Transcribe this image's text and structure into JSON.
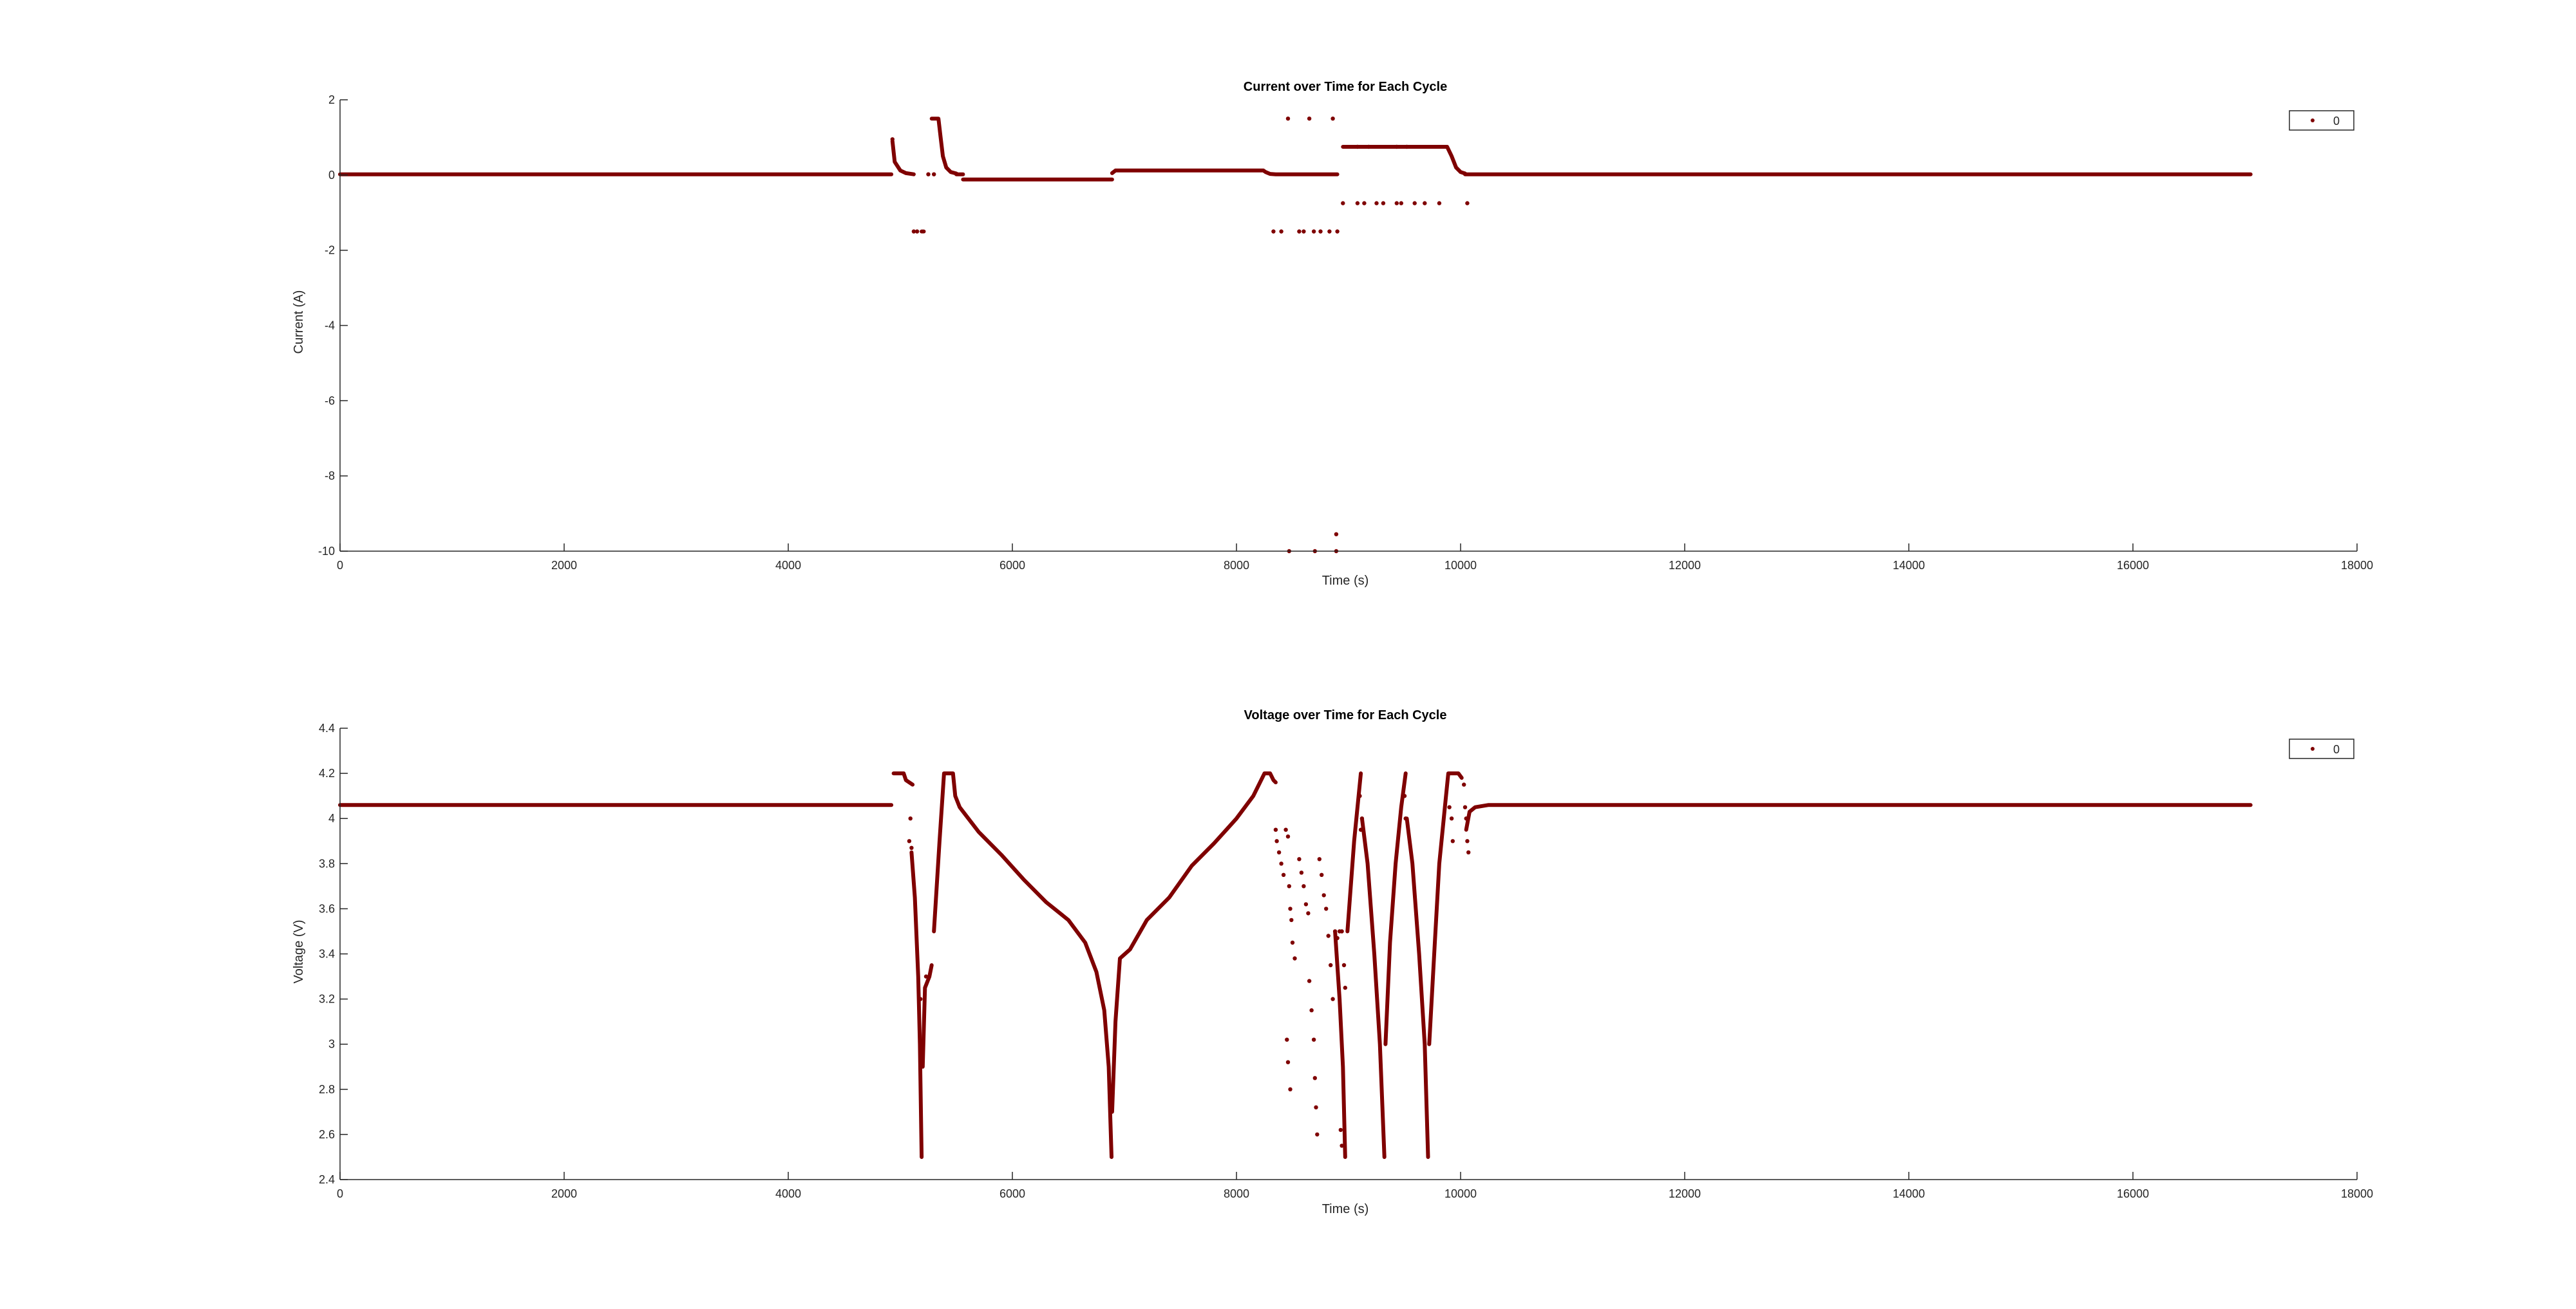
{
  "chart_data": [
    {
      "type": "scatter",
      "title": "Current over Time for Each Cycle",
      "xlabel": "Time (s)",
      "ylabel": "Current (A)",
      "xlim": [
        0,
        18000
      ],
      "ylim": [
        -10,
        2
      ],
      "xticks": [
        0,
        2000,
        4000,
        6000,
        8000,
        10000,
        12000,
        14000,
        16000,
        18000
      ],
      "yticks": [
        -10,
        -8,
        -6,
        -4,
        -2,
        0,
        2
      ],
      "grid": false,
      "legend": {
        "position": "top-right",
        "entries": [
          "0"
        ]
      },
      "series": [
        {
          "name": "0",
          "color": "#7f0000",
          "segments": [
            [
              [
                0,
                0.02
              ],
              [
                4920,
                0.02
              ]
            ],
            [
              [
                4930,
                0.9
              ],
              [
                4950,
                0.35
              ],
              [
                5000,
                0.12
              ],
              [
                5050,
                0.05
              ],
              [
                5120,
                0.02
              ]
            ],
            [
              [
                5190,
                -1.5
              ],
              [
                5210,
                -1.5
              ]
            ],
            [
              [
                5280,
                1.5
              ],
              [
                5340,
                1.5
              ],
              [
                5360,
                1.0
              ],
              [
                5380,
                0.5
              ],
              [
                5410,
                0.2
              ],
              [
                5450,
                0.08
              ],
              [
                5500,
                0.04
              ]
            ],
            [
              [
                5500,
                0.02
              ],
              [
                5560,
                0.02
              ]
            ],
            [
              [
                5560,
                -0.12
              ],
              [
                6890,
                -0.12
              ]
            ],
            [
              [
                6890,
                0.05
              ],
              [
                6920,
                0.12
              ],
              [
                8240,
                0.12
              ],
              [
                8260,
                0.08
              ],
              [
                8300,
                0.03
              ],
              [
                8350,
                0.02
              ],
              [
                8900,
                0.02
              ]
            ],
            [
              [
                8950,
                0.75
              ],
              [
                9880,
                0.75
              ],
              [
                9920,
                0.5
              ],
              [
                9960,
                0.2
              ],
              [
                10000,
                0.08
              ],
              [
                10040,
                0.04
              ]
            ],
            [
              [
                10040,
                0.02
              ],
              [
                17050,
                0.02
              ]
            ]
          ],
          "points": [
            [
              4930,
              0.95
            ],
            [
              5120,
              -1.5
            ],
            [
              5150,
              -1.5
            ],
            [
              5250,
              0.02
            ],
            [
              5300,
              0.02
            ],
            [
              8330,
              -1.5
            ],
            [
              8400,
              -1.5
            ],
            [
              8460,
              1.5
            ],
            [
              8650,
              1.5
            ],
            [
              8860,
              1.5
            ],
            [
              8560,
              -1.5
            ],
            [
              8600,
              -1.5
            ],
            [
              8690,
              -1.5
            ],
            [
              8750,
              -1.5
            ],
            [
              8830,
              -1.5
            ],
            [
              8900,
              -1.5
            ],
            [
              8470,
              -10
            ],
            [
              8700,
              -10
            ],
            [
              8890,
              -10
            ],
            [
              8890,
              -9.55
            ],
            [
              8950,
              -0.75
            ],
            [
              9080,
              -0.75
            ],
            [
              9140,
              -0.75
            ],
            [
              9250,
              -0.75
            ],
            [
              9310,
              -0.75
            ],
            [
              9430,
              -0.75
            ],
            [
              9470,
              -0.75
            ],
            [
              9590,
              -0.75
            ],
            [
              9680,
              -0.75
            ],
            [
              9810,
              -0.75
            ],
            [
              10060,
              -0.75
            ],
            [
              9080,
              0.75
            ],
            [
              9180,
              0.75
            ],
            [
              9430,
              0.75
            ],
            [
              9520,
              0.75
            ]
          ]
        }
      ]
    },
    {
      "type": "scatter",
      "title": "Voltage over Time for Each Cycle",
      "xlabel": "Time (s)",
      "ylabel": "Voltage (V)",
      "xlim": [
        0,
        18000
      ],
      "ylim": [
        2.4,
        4.4
      ],
      "xticks": [
        0,
        2000,
        4000,
        6000,
        8000,
        10000,
        12000,
        14000,
        16000,
        18000
      ],
      "yticks": [
        2.4,
        2.6,
        2.8,
        3,
        3.2,
        3.4,
        3.6,
        3.8,
        4,
        4.2,
        4.4
      ],
      "grid": false,
      "legend": {
        "position": "top-right",
        "entries": [
          "0"
        ]
      },
      "series": [
        {
          "name": "0",
          "color": "#7f0000",
          "segments": [
            [
              [
                0,
                4.06
              ],
              [
                4920,
                4.06
              ]
            ],
            [
              [
                4940,
                4.2
              ],
              [
                5030,
                4.2
              ],
              [
                5050,
                4.17
              ],
              [
                5080,
                4.16
              ],
              [
                5110,
                4.15
              ]
            ],
            [
              [
                5100,
                3.85
              ],
              [
                5130,
                3.65
              ],
              [
                5160,
                3.3
              ],
              [
                5175,
                3.0
              ],
              [
                5190,
                2.5
              ]
            ],
            [
              [
                5200,
                2.9
              ],
              [
                5220,
                3.25
              ],
              [
                5260,
                3.3
              ],
              [
                5280,
                3.35
              ]
            ],
            [
              [
                5300,
                3.5
              ],
              [
                5350,
                3.9
              ],
              [
                5390,
                4.2
              ],
              [
                5470,
                4.2
              ],
              [
                5490,
                4.1
              ],
              [
                5530,
                4.05
              ],
              [
                5700,
                3.94
              ],
              [
                5900,
                3.84
              ],
              [
                6100,
                3.73
              ],
              [
                6300,
                3.63
              ],
              [
                6500,
                3.55
              ],
              [
                6650,
                3.45
              ],
              [
                6750,
                3.32
              ],
              [
                6820,
                3.15
              ],
              [
                6860,
                2.9
              ],
              [
                6885,
                2.5
              ]
            ],
            [
              [
                6890,
                2.7
              ],
              [
                6920,
                3.1
              ],
              [
                6960,
                3.38
              ],
              [
                7050,
                3.42
              ],
              [
                7200,
                3.55
              ],
              [
                7400,
                3.65
              ],
              [
                7600,
                3.79
              ],
              [
                7800,
                3.89
              ],
              [
                8000,
                4.0
              ],
              [
                8150,
                4.1
              ],
              [
                8250,
                4.2
              ],
              [
                8300,
                4.2
              ],
              [
                8330,
                4.17
              ],
              [
                8350,
                4.16
              ]
            ],
            [
              [
                8880,
                3.5
              ],
              [
                8920,
                3.2
              ],
              [
                8950,
                2.9
              ],
              [
                8970,
                2.5
              ]
            ],
            [
              [
                8990,
                3.5
              ],
              [
                9050,
                3.9
              ],
              [
                9110,
                4.2
              ]
            ],
            [
              [
                9120,
                4.0
              ],
              [
                9170,
                3.8
              ],
              [
                9230,
                3.4
              ],
              [
                9280,
                3.0
              ],
              [
                9320,
                2.5
              ]
            ],
            [
              [
                9330,
                3.0
              ],
              [
                9370,
                3.45
              ],
              [
                9420,
                3.8
              ],
              [
                9470,
                4.05
              ],
              [
                9510,
                4.2
              ]
            ],
            [
              [
                9520,
                4.0
              ],
              [
                9570,
                3.8
              ],
              [
                9630,
                3.4
              ],
              [
                9680,
                3.0
              ],
              [
                9710,
                2.5
              ]
            ],
            [
              [
                9720,
                3.0
              ],
              [
                9770,
                3.45
              ],
              [
                9810,
                3.8
              ],
              [
                9860,
                4.05
              ],
              [
                9890,
                4.2
              ],
              [
                9980,
                4.2
              ],
              [
                10010,
                4.18
              ]
            ],
            [
              [
                10050,
                3.95
              ],
              [
                10080,
                4.03
              ],
              [
                10130,
                4.05
              ],
              [
                10250,
                4.06
              ],
              [
                17050,
                4.06
              ]
            ]
          ],
          "points": [
            [
              5080,
              3.9
            ],
            [
              5090,
              4.0
            ],
            [
              5100,
              3.87
            ],
            [
              5230,
              3.3
            ],
            [
              5180,
              3.2
            ],
            [
              8350,
              3.95
            ],
            [
              8360,
              3.9
            ],
            [
              8380,
              3.85
            ],
            [
              8400,
              3.8
            ],
            [
              8420,
              3.75
            ],
            [
              8440,
              3.95
            ],
            [
              8460,
              3.92
            ],
            [
              8470,
              3.7
            ],
            [
              8480,
              3.6
            ],
            [
              8490,
              3.55
            ],
            [
              8500,
              3.45
            ],
            [
              8520,
              3.38
            ],
            [
              8450,
              3.02
            ],
            [
              8460,
              2.92
            ],
            [
              8480,
              2.8
            ],
            [
              8560,
              3.82
            ],
            [
              8580,
              3.76
            ],
            [
              8600,
              3.7
            ],
            [
              8620,
              3.62
            ],
            [
              8640,
              3.58
            ],
            [
              8650,
              3.28
            ],
            [
              8670,
              3.15
            ],
            [
              8690,
              3.02
            ],
            [
              8700,
              2.85
            ],
            [
              8710,
              2.72
            ],
            [
              8720,
              2.6
            ],
            [
              8740,
              3.82
            ],
            [
              8760,
              3.75
            ],
            [
              8780,
              3.66
            ],
            [
              8800,
              3.6
            ],
            [
              8820,
              3.48
            ],
            [
              8840,
              3.35
            ],
            [
              8860,
              3.2
            ],
            [
              8880,
              3.5
            ],
            [
              8900,
              3.47
            ],
            [
              8920,
              3.5
            ],
            [
              8940,
              3.5
            ],
            [
              8930,
              2.62
            ],
            [
              8940,
              2.55
            ],
            [
              8960,
              3.35
            ],
            [
              8970,
              3.25
            ],
            [
              9100,
              4.1
            ],
            [
              9120,
              4.0
            ],
            [
              9110,
              3.95
            ],
            [
              9500,
              4.1
            ],
            [
              9510,
              4.0
            ],
            [
              9900,
              4.05
            ],
            [
              9920,
              4.0
            ],
            [
              9930,
              3.9
            ],
            [
              10030,
              4.15
            ],
            [
              10040,
              4.05
            ],
            [
              10050,
              4.0
            ],
            [
              10060,
              3.9
            ],
            [
              10070,
              3.85
            ]
          ]
        }
      ]
    }
  ]
}
